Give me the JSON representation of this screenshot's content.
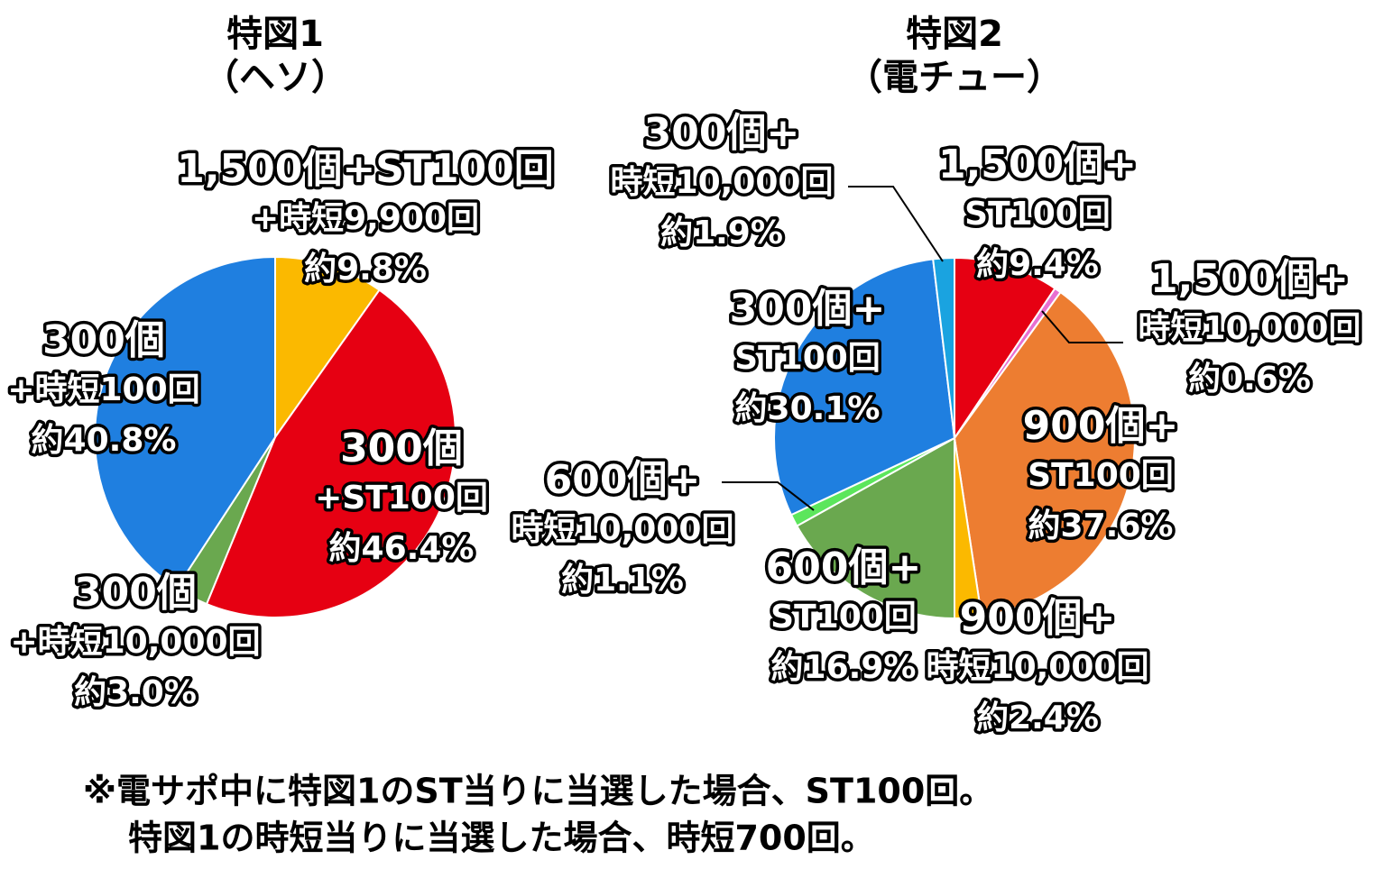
{
  "chart_data": [
    {
      "type": "pie",
      "title": "特図1",
      "subtitle": "（ヘソ）",
      "categories": [
        [
          "1,500個+ST100回",
          "+時短9,900回"
        ],
        [
          "300個",
          "+ST100回"
        ],
        [
          "300個",
          "+時短10,000回"
        ],
        [
          "300個",
          "+時短100回"
        ]
      ],
      "values": [
        9.8,
        46.4,
        3.0,
        40.8
      ],
      "value_labels": [
        "約9.8%",
        "約46.4%",
        "約3.0%",
        "約40.8%"
      ],
      "colors": [
        "#fbb900",
        "#e60012",
        "#6aa84f",
        "#1f7fe0"
      ]
    },
    {
      "type": "pie",
      "title": "特図2",
      "subtitle": "（電チュー）",
      "categories": [
        [
          "1,500個+",
          "ST100回"
        ],
        [
          "1,500個+",
          "時短10,000回"
        ],
        [
          "900個+",
          "ST100回"
        ],
        [
          "900個+",
          "時短10,000回"
        ],
        [
          "600個+",
          "ST100回"
        ],
        [
          "600個+",
          "時短10,000回"
        ],
        [
          "300個+",
          "ST100回"
        ],
        [
          "300個+",
          "時短10,000回"
        ]
      ],
      "values": [
        9.4,
        0.6,
        37.6,
        2.4,
        16.9,
        1.1,
        30.1,
        1.9
      ],
      "value_labels": [
        "約9.4%",
        "約0.6%",
        "約37.6%",
        "約2.4%",
        "約16.9%",
        "約1.1%",
        "約30.1%",
        "約1.9%"
      ],
      "colors": [
        "#e60012",
        "#e86fd0",
        "#ed7d31",
        "#fbb900",
        "#6aa84f",
        "#5ce65c",
        "#1f7fe0",
        "#1aa3e0"
      ]
    }
  ],
  "notes": [
    "※電サポ中に特図1のST当りに当選した場合、ST100回。",
    "特図1の時短当りに当選した場合、時短700回。"
  ]
}
